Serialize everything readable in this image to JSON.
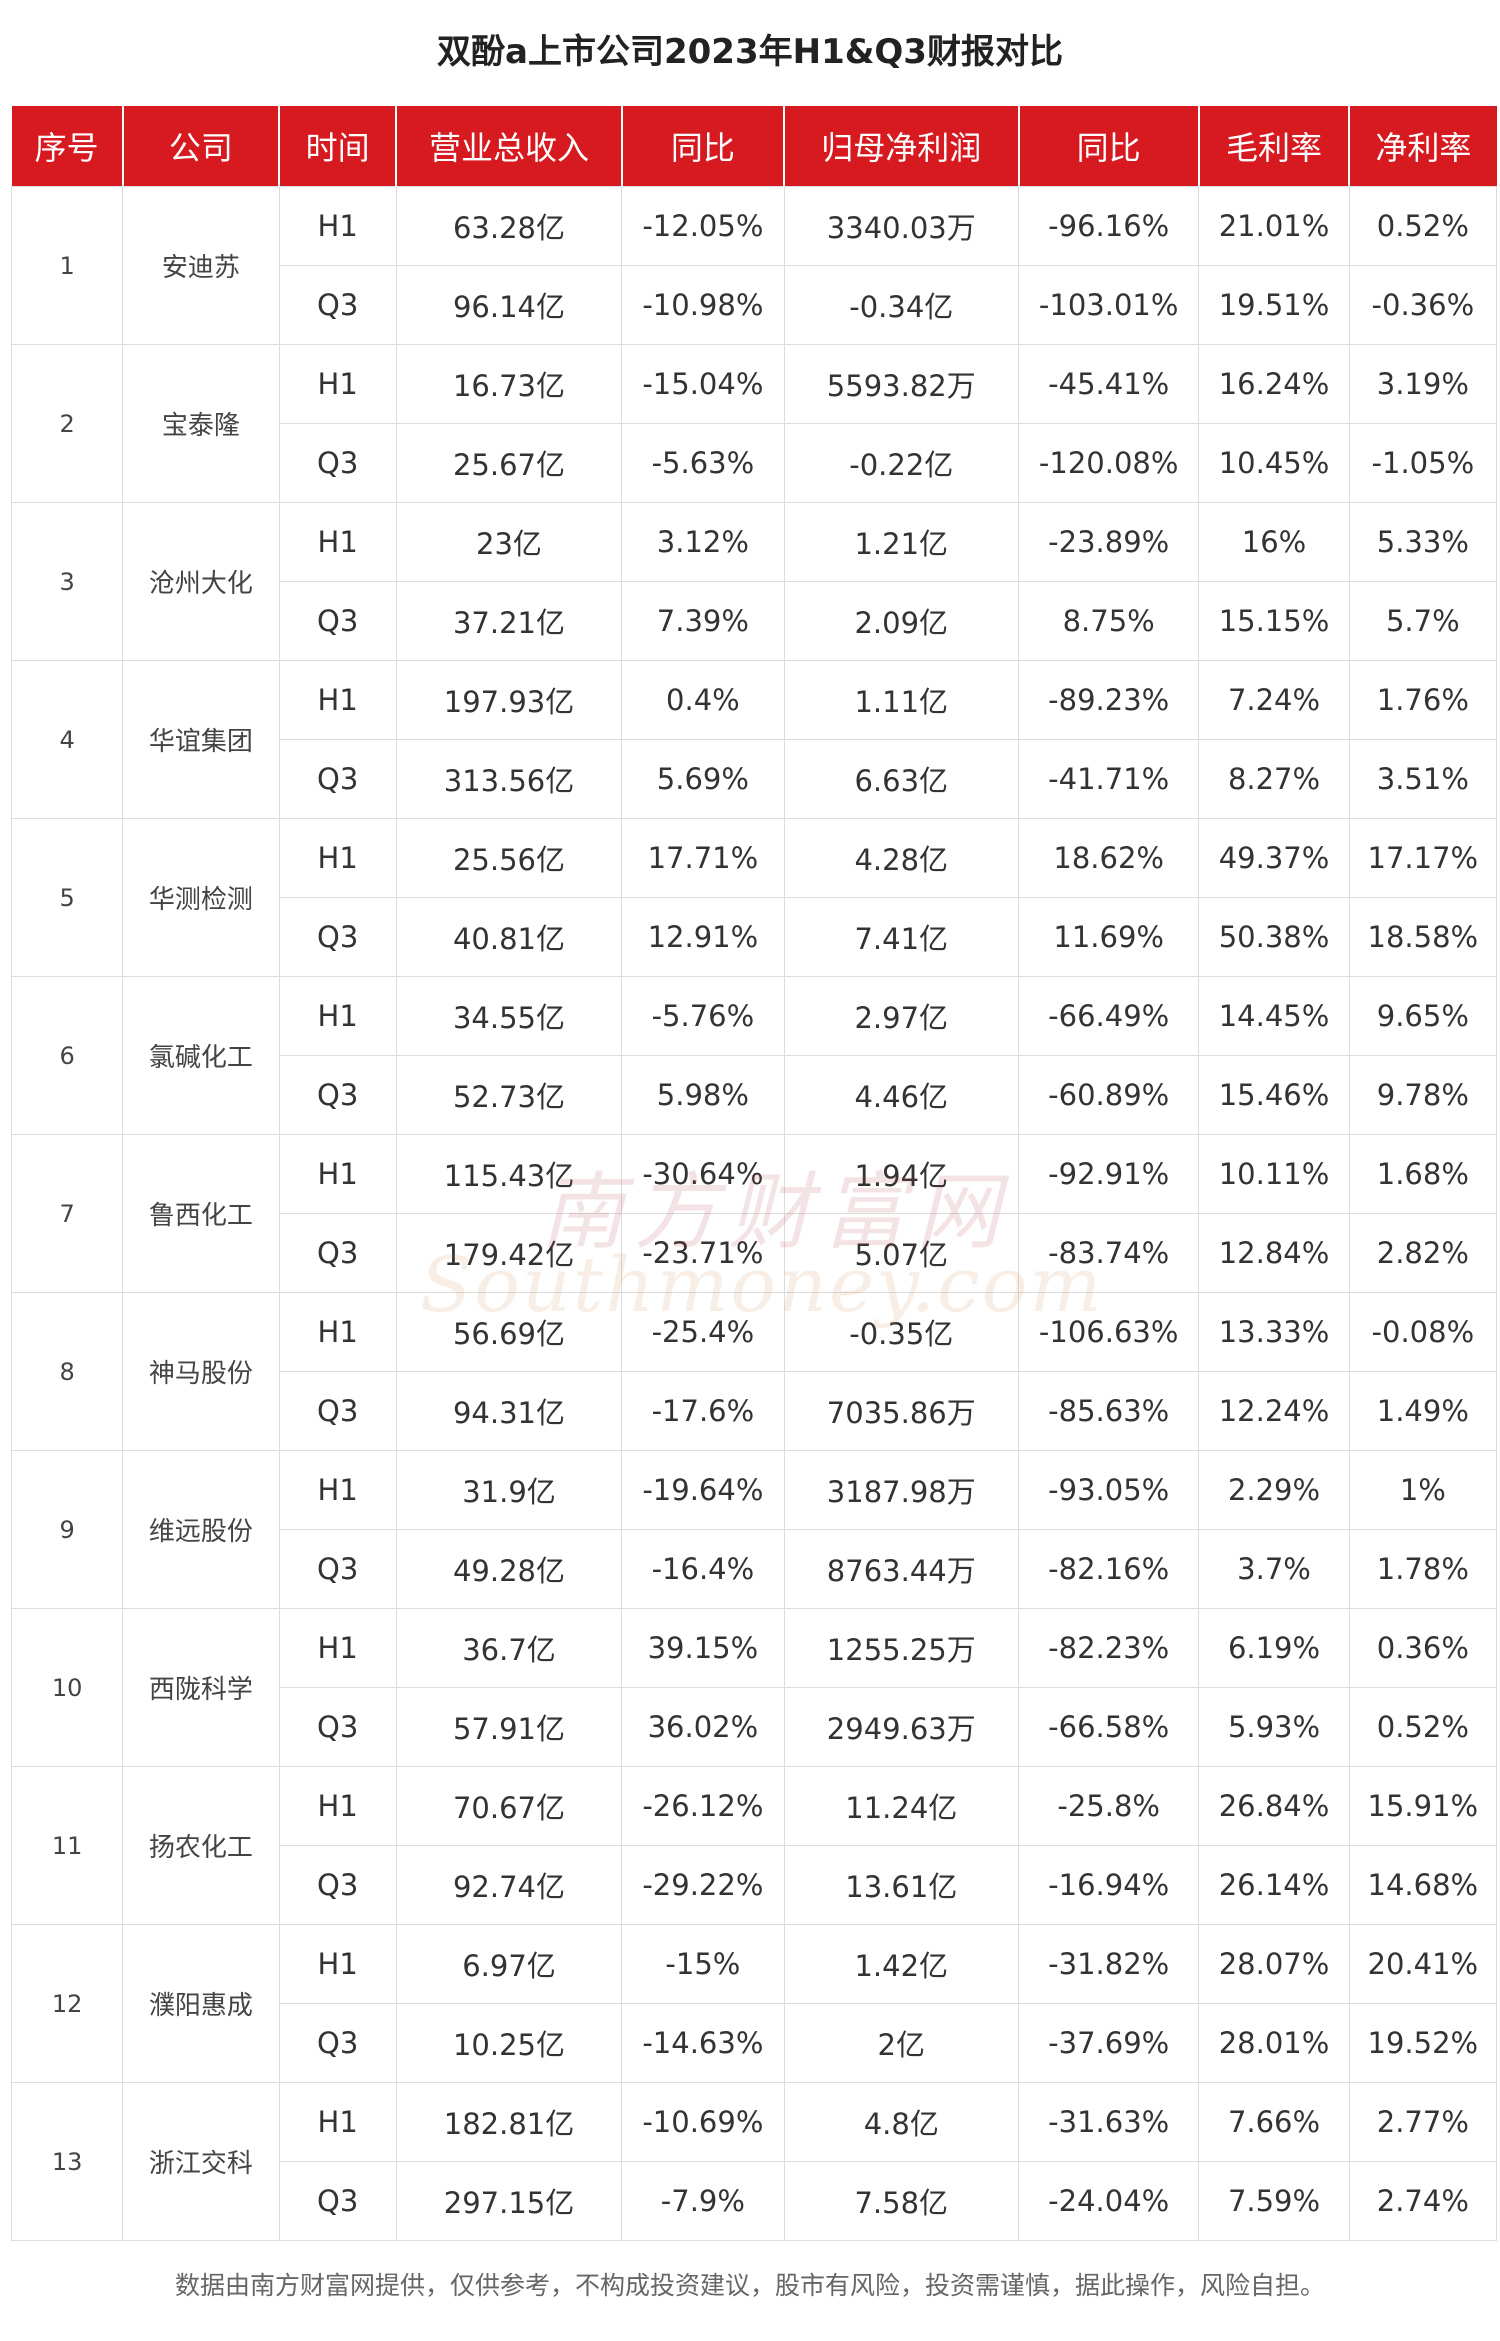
{
  "title": "双酚a上市公司2023年H1&Q3财报对比",
  "columns": [
    "序号",
    "公司",
    "时间",
    "营业总收入",
    "同比",
    "归母净利润",
    "同比",
    "毛利率",
    "净利率"
  ],
  "companies": [
    {
      "no": "1",
      "name": "安迪苏",
      "rows": [
        {
          "period": "H1",
          "revenue": "63.28亿",
          "revenue_yoy": "-12.05%",
          "net_profit": "3340.03万",
          "profit_yoy": "-96.16%",
          "gross_margin": "21.01%",
          "net_margin": "0.52%"
        },
        {
          "period": "Q3",
          "revenue": "96.14亿",
          "revenue_yoy": "-10.98%",
          "net_profit": "-0.34亿",
          "profit_yoy": "-103.01%",
          "gross_margin": "19.51%",
          "net_margin": "-0.36%"
        }
      ]
    },
    {
      "no": "2",
      "name": "宝泰隆",
      "rows": [
        {
          "period": "H1",
          "revenue": "16.73亿",
          "revenue_yoy": "-15.04%",
          "net_profit": "5593.82万",
          "profit_yoy": "-45.41%",
          "gross_margin": "16.24%",
          "net_margin": "3.19%"
        },
        {
          "period": "Q3",
          "revenue": "25.67亿",
          "revenue_yoy": "-5.63%",
          "net_profit": "-0.22亿",
          "profit_yoy": "-120.08%",
          "gross_margin": "10.45%",
          "net_margin": "-1.05%"
        }
      ]
    },
    {
      "no": "3",
      "name": "沧州大化",
      "rows": [
        {
          "period": "H1",
          "revenue": "23亿",
          "revenue_yoy": "3.12%",
          "net_profit": "1.21亿",
          "profit_yoy": "-23.89%",
          "gross_margin": "16%",
          "net_margin": "5.33%"
        },
        {
          "period": "Q3",
          "revenue": "37.21亿",
          "revenue_yoy": "7.39%",
          "net_profit": "2.09亿",
          "profit_yoy": "8.75%",
          "gross_margin": "15.15%",
          "net_margin": "5.7%"
        }
      ]
    },
    {
      "no": "4",
      "name": "华谊集团",
      "rows": [
        {
          "period": "H1",
          "revenue": "197.93亿",
          "revenue_yoy": "0.4%",
          "net_profit": "1.11亿",
          "profit_yoy": "-89.23%",
          "gross_margin": "7.24%",
          "net_margin": "1.76%"
        },
        {
          "period": "Q3",
          "revenue": "313.56亿",
          "revenue_yoy": "5.69%",
          "net_profit": "6.63亿",
          "profit_yoy": "-41.71%",
          "gross_margin": "8.27%",
          "net_margin": "3.51%"
        }
      ]
    },
    {
      "no": "5",
      "name": "华测检测",
      "rows": [
        {
          "period": "H1",
          "revenue": "25.56亿",
          "revenue_yoy": "17.71%",
          "net_profit": "4.28亿",
          "profit_yoy": "18.62%",
          "gross_margin": "49.37%",
          "net_margin": "17.17%"
        },
        {
          "period": "Q3",
          "revenue": "40.81亿",
          "revenue_yoy": "12.91%",
          "net_profit": "7.41亿",
          "profit_yoy": "11.69%",
          "gross_margin": "50.38%",
          "net_margin": "18.58%"
        }
      ]
    },
    {
      "no": "6",
      "name": "氯碱化工",
      "rows": [
        {
          "period": "H1",
          "revenue": "34.55亿",
          "revenue_yoy": "-5.76%",
          "net_profit": "2.97亿",
          "profit_yoy": "-66.49%",
          "gross_margin": "14.45%",
          "net_margin": "9.65%"
        },
        {
          "period": "Q3",
          "revenue": "52.73亿",
          "revenue_yoy": "5.98%",
          "net_profit": "4.46亿",
          "profit_yoy": "-60.89%",
          "gross_margin": "15.46%",
          "net_margin": "9.78%"
        }
      ]
    },
    {
      "no": "7",
      "name": "鲁西化工",
      "rows": [
        {
          "period": "H1",
          "revenue": "115.43亿",
          "revenue_yoy": "-30.64%",
          "net_profit": "1.94亿",
          "profit_yoy": "-92.91%",
          "gross_margin": "10.11%",
          "net_margin": "1.68%"
        },
        {
          "period": "Q3",
          "revenue": "179.42亿",
          "revenue_yoy": "-23.71%",
          "net_profit": "5.07亿",
          "profit_yoy": "-83.74%",
          "gross_margin": "12.84%",
          "net_margin": "2.82%"
        }
      ]
    },
    {
      "no": "8",
      "name": "神马股份",
      "rows": [
        {
          "period": "H1",
          "revenue": "56.69亿",
          "revenue_yoy": "-25.4%",
          "net_profit": "-0.35亿",
          "profit_yoy": "-106.63%",
          "gross_margin": "13.33%",
          "net_margin": "-0.08%"
        },
        {
          "period": "Q3",
          "revenue": "94.31亿",
          "revenue_yoy": "-17.6%",
          "net_profit": "7035.86万",
          "profit_yoy": "-85.63%",
          "gross_margin": "12.24%",
          "net_margin": "1.49%"
        }
      ]
    },
    {
      "no": "9",
      "name": "维远股份",
      "rows": [
        {
          "period": "H1",
          "revenue": "31.9亿",
          "revenue_yoy": "-19.64%",
          "net_profit": "3187.98万",
          "profit_yoy": "-93.05%",
          "gross_margin": "2.29%",
          "net_margin": "1%"
        },
        {
          "period": "Q3",
          "revenue": "49.28亿",
          "revenue_yoy": "-16.4%",
          "net_profit": "8763.44万",
          "profit_yoy": "-82.16%",
          "gross_margin": "3.7%",
          "net_margin": "1.78%"
        }
      ]
    },
    {
      "no": "10",
      "name": "西陇科学",
      "rows": [
        {
          "period": "H1",
          "revenue": "36.7亿",
          "revenue_yoy": "39.15%",
          "net_profit": "1255.25万",
          "profit_yoy": "-82.23%",
          "gross_margin": "6.19%",
          "net_margin": "0.36%"
        },
        {
          "period": "Q3",
          "revenue": "57.91亿",
          "revenue_yoy": "36.02%",
          "net_profit": "2949.63万",
          "profit_yoy": "-66.58%",
          "gross_margin": "5.93%",
          "net_margin": "0.52%"
        }
      ]
    },
    {
      "no": "11",
      "name": "扬农化工",
      "rows": [
        {
          "period": "H1",
          "revenue": "70.67亿",
          "revenue_yoy": "-26.12%",
          "net_profit": "11.24亿",
          "profit_yoy": "-25.8%",
          "gross_margin": "26.84%",
          "net_margin": "15.91%"
        },
        {
          "period": "Q3",
          "revenue": "92.74亿",
          "revenue_yoy": "-29.22%",
          "net_profit": "13.61亿",
          "profit_yoy": "-16.94%",
          "gross_margin": "26.14%",
          "net_margin": "14.68%"
        }
      ]
    },
    {
      "no": "12",
      "name": "濮阳惠成",
      "rows": [
        {
          "period": "H1",
          "revenue": "6.97亿",
          "revenue_yoy": "-15%",
          "net_profit": "1.42亿",
          "profit_yoy": "-31.82%",
          "gross_margin": "28.07%",
          "net_margin": "20.41%"
        },
        {
          "period": "Q3",
          "revenue": "10.25亿",
          "revenue_yoy": "-14.63%",
          "net_profit": "2亿",
          "profit_yoy": "-37.69%",
          "gross_margin": "28.01%",
          "net_margin": "19.52%"
        }
      ]
    },
    {
      "no": "13",
      "name": "浙江交科",
      "rows": [
        {
          "period": "H1",
          "revenue": "182.81亿",
          "revenue_yoy": "-10.69%",
          "net_profit": "4.8亿",
          "profit_yoy": "-31.63%",
          "gross_margin": "7.66%",
          "net_margin": "2.77%"
        },
        {
          "period": "Q3",
          "revenue": "297.15亿",
          "revenue_yoy": "-7.9%",
          "net_profit": "7.58亿",
          "profit_yoy": "-24.04%",
          "gross_margin": "7.59%",
          "net_margin": "2.74%"
        }
      ]
    }
  ],
  "watermark": {
    "cn": "南方财富网",
    "en": "Southmoney.com"
  },
  "footer": "数据由南方财富网提供，仅供参考，不构成投资建议，股市有风险，投资需谨慎，据此操作，风险自担。",
  "colors": {
    "header_bg": "#d71920",
    "header_text": "#ffffff",
    "grid": "#dcdcdc"
  }
}
